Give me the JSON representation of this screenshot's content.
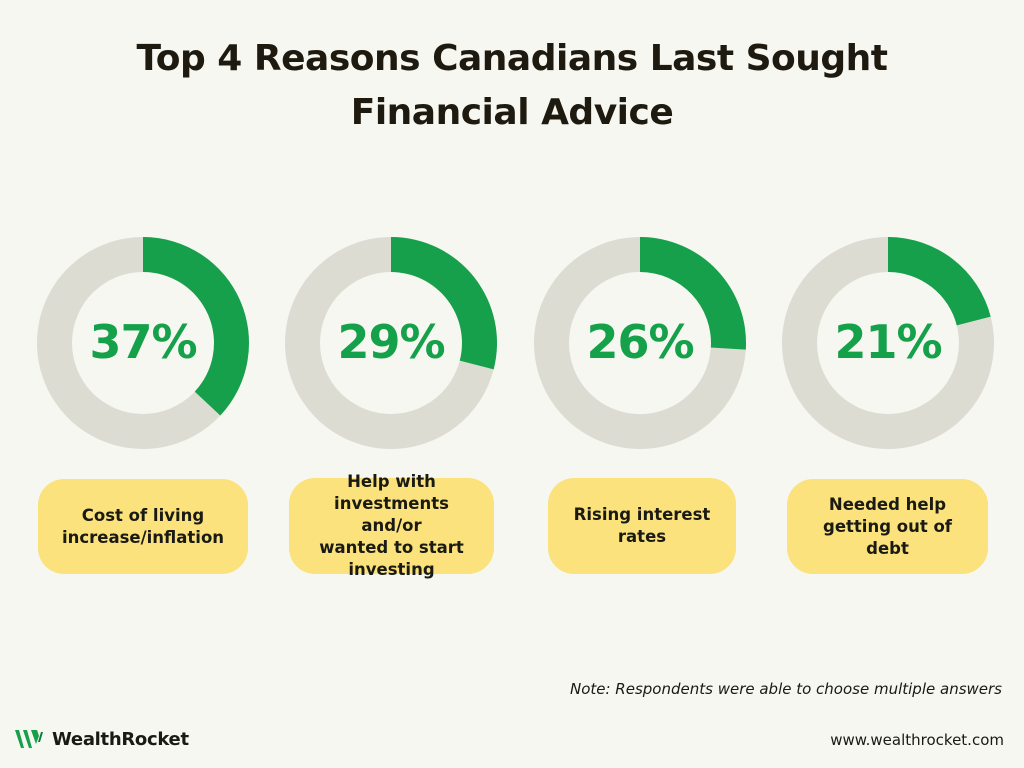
{
  "title": {
    "line1": "Top 4 Reasons Canadians Last Sought",
    "line2": "Financial Advice"
  },
  "colors": {
    "background": "#f7f7f2",
    "arc_fill": "#16a04b",
    "ring_track": "#dcdcd2",
    "label_box": "#fbe27c",
    "percent_text": "#15a04a"
  },
  "chart_data": {
    "type": "donut",
    "items": [
      {
        "value": 37,
        "display": "37%",
        "label_lines": [
          "Cost of living",
          "increase/inflation"
        ]
      },
      {
        "value": 29,
        "display": "29%",
        "label_lines": [
          "Help with",
          "investments and/or",
          "wanted to start",
          "investing"
        ]
      },
      {
        "value": 26,
        "display": "26%",
        "label_lines": [
          "Rising interest",
          "rates"
        ]
      },
      {
        "value": 21,
        "display": "21%",
        "label_lines": [
          "Needed help",
          "getting out of",
          "debt"
        ]
      }
    ]
  },
  "note": "Note: Respondents were able to choose multiple answers",
  "footer": {
    "brand": "WealthRocket",
    "website": "www.wealthrocket.com"
  }
}
